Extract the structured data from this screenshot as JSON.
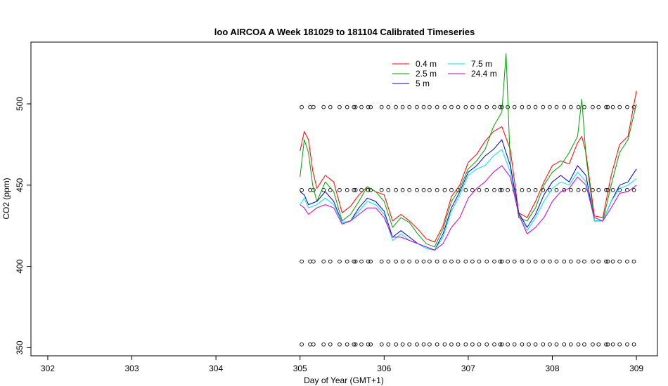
{
  "chart_data": {
    "type": "line",
    "title": "loo AIRCOA A  Week 181029 to 181104  Calibrated Timeseries",
    "xlabel": "Day of Year (GMT+1)",
    "ylabel": "CO2 (ppm)",
    "xlim": [
      301.8,
      309.25
    ],
    "ylim": [
      345,
      538
    ],
    "x_ticks": [
      302,
      303,
      304,
      305,
      306,
      307,
      308,
      309
    ],
    "y_ticks": [
      350,
      400,
      450,
      500
    ],
    "grid": false,
    "legend_position": "top-right",
    "legend_columns": 2,
    "series": [
      {
        "name": "0.4 m",
        "color": "#ff0000",
        "x": [
          305.0,
          305.05,
          305.1,
          305.15,
          305.2,
          305.3,
          305.4,
          305.5,
          305.6,
          305.7,
          305.8,
          305.9,
          306.0,
          306.1,
          306.2,
          306.3,
          306.4,
          306.5,
          306.6,
          306.7,
          306.8,
          306.9,
          307.0,
          307.1,
          307.2,
          307.3,
          307.4,
          307.5,
          307.6,
          307.7,
          307.8,
          307.9,
          308.0,
          308.1,
          308.2,
          308.3,
          308.35,
          308.4,
          308.5,
          308.6,
          308.7,
          308.8,
          308.9,
          309.0
        ],
        "y": [
          471,
          483,
          478,
          459,
          448,
          456,
          452,
          433,
          437,
          444,
          449,
          446,
          444,
          428,
          432,
          428,
          423,
          417,
          415,
          425,
          443,
          450,
          464,
          469,
          477,
          483,
          486,
          472,
          433,
          430,
          440,
          452,
          462,
          465,
          463,
          476,
          480,
          470,
          431,
          430,
          456,
          475,
          480,
          508
        ]
      },
      {
        "name": "2.5 m",
        "color": "#00a000",
        "x": [
          305.0,
          305.05,
          305.1,
          305.15,
          305.2,
          305.3,
          305.4,
          305.5,
          305.6,
          305.7,
          305.8,
          305.9,
          306.0,
          306.1,
          306.2,
          306.3,
          306.4,
          306.5,
          306.6,
          306.7,
          306.8,
          306.9,
          307.0,
          307.1,
          307.2,
          307.3,
          307.4,
          307.45,
          307.5,
          307.6,
          307.7,
          307.8,
          307.9,
          308.0,
          308.1,
          308.2,
          308.3,
          308.35,
          308.4,
          308.5,
          308.6,
          308.7,
          308.8,
          308.9,
          309.0
        ],
        "y": [
          455,
          478,
          470,
          450,
          440,
          452,
          446,
          428,
          432,
          440,
          449,
          446,
          440,
          424,
          430,
          427,
          420,
          414,
          412,
          423,
          440,
          448,
          460,
          465,
          472,
          486,
          495,
          531,
          463,
          430,
          428,
          436,
          450,
          458,
          462,
          470,
          480,
          503,
          468,
          428,
          428,
          450,
          470,
          478,
          500
        ]
      },
      {
        "name": "5 m",
        "color": "#0000cc",
        "x": [
          305.0,
          305.05,
          305.1,
          305.2,
          305.3,
          305.4,
          305.5,
          305.6,
          305.7,
          305.8,
          305.9,
          306.0,
          306.1,
          306.2,
          306.3,
          306.4,
          306.5,
          306.6,
          306.7,
          306.8,
          306.9,
          307.0,
          307.1,
          307.2,
          307.3,
          307.4,
          307.5,
          307.6,
          307.7,
          307.8,
          307.9,
          308.0,
          308.1,
          308.2,
          308.3,
          308.4,
          308.5,
          308.6,
          308.7,
          308.8,
          308.9,
          309.0
        ],
        "y": [
          446,
          444,
          438,
          440,
          446,
          440,
          427,
          428,
          436,
          442,
          440,
          434,
          418,
          422,
          418,
          414,
          412,
          410,
          420,
          436,
          446,
          458,
          462,
          468,
          472,
          478,
          462,
          433,
          424,
          432,
          444,
          452,
          456,
          452,
          462,
          456,
          428,
          428,
          440,
          450,
          452,
          460
        ]
      },
      {
        "name": "7.5 m",
        "color": "#00e5ee",
        "x": [
          305.0,
          305.05,
          305.1,
          305.2,
          305.3,
          305.4,
          305.5,
          305.6,
          305.7,
          305.8,
          305.9,
          306.0,
          306.1,
          306.2,
          306.3,
          306.4,
          306.5,
          306.6,
          306.7,
          306.8,
          306.9,
          307.0,
          307.1,
          307.2,
          307.3,
          307.4,
          307.5,
          307.6,
          307.7,
          307.8,
          307.9,
          308.0,
          308.1,
          308.2,
          308.3,
          308.4,
          308.5,
          308.6,
          308.7,
          308.8,
          308.9,
          309.0
        ],
        "y": [
          438,
          442,
          436,
          438,
          442,
          438,
          427,
          428,
          434,
          440,
          438,
          432,
          416,
          420,
          416,
          414,
          411,
          410,
          418,
          434,
          444,
          456,
          460,
          462,
          468,
          472,
          458,
          432,
          422,
          430,
          440,
          448,
          452,
          450,
          458,
          452,
          428,
          428,
          440,
          448,
          450,
          454
        ]
      },
      {
        "name": "24.4 m",
        "color": "#cc00cc",
        "x": [
          305.0,
          305.05,
          305.1,
          305.2,
          305.3,
          305.4,
          305.5,
          305.6,
          305.7,
          305.8,
          305.9,
          306.0,
          306.1,
          306.2,
          306.3,
          306.4,
          306.5,
          306.6,
          306.7,
          306.8,
          306.9,
          307.0,
          307.1,
          307.2,
          307.3,
          307.4,
          307.5,
          307.6,
          307.7,
          307.8,
          307.9,
          308.0,
          308.1,
          308.2,
          308.3,
          308.4,
          308.5,
          308.6,
          308.7,
          308.8,
          308.9,
          309.0
        ],
        "y": [
          438,
          436,
          432,
          436,
          438,
          436,
          426,
          428,
          432,
          436,
          436,
          430,
          418,
          418,
          416,
          414,
          412,
          410,
          414,
          424,
          430,
          442,
          448,
          452,
          458,
          462,
          455,
          432,
          420,
          424,
          430,
          440,
          446,
          448,
          455,
          450,
          430,
          428,
          436,
          445,
          446,
          450
        ]
      }
    ],
    "calibration_markers": {
      "style": "open-circle",
      "x": [
        305.02,
        305.12,
        305.16,
        305.28,
        305.36,
        305.47,
        305.56,
        305.64,
        305.66,
        305.73,
        305.81,
        305.84,
        305.97,
        306.05,
        306.14,
        306.22,
        306.3,
        306.39,
        306.47,
        306.54,
        306.63,
        306.72,
        306.8,
        306.88,
        306.97,
        307.05,
        307.13,
        307.22,
        307.31,
        307.38,
        307.4,
        307.47,
        307.55,
        307.64,
        307.72,
        307.8,
        307.89,
        307.97,
        308.05,
        308.14,
        308.22,
        308.31,
        308.38,
        308.48,
        308.55,
        308.64,
        308.66,
        308.72,
        308.8,
        308.89,
        308.97
      ],
      "levels": [
        352,
        403,
        447,
        498
      ]
    }
  }
}
